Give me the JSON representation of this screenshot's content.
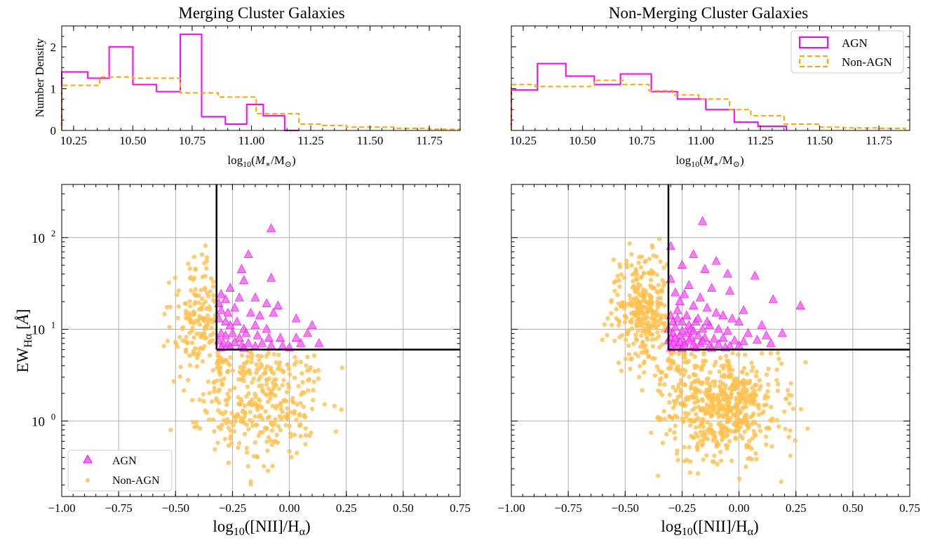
{
  "colors": {
    "agn": "#ff00ff",
    "agn_fill": "#ee55ee",
    "non_agn": "#ffa500",
    "non_agn_fill": "#ffc04d",
    "grid": "#b0b0b0",
    "axes": "#000000",
    "cut_line": "#000000"
  },
  "legend_labels": {
    "agn": "AGN",
    "non_agn": "Non-AGN"
  },
  "chart_data": [
    {
      "type": "bar",
      "subtype": "step-histogram",
      "panel": "top-left",
      "title": "Merging Cluster Galaxies",
      "xlabel": "log10(M*/M☉)",
      "ylabel": "Number Density",
      "xlim": [
        10.2,
        11.88
      ],
      "ylim": [
        0,
        2.5
      ],
      "xticks": [
        "10.25",
        "10.50",
        "10.75",
        "11.00",
        "11.25",
        "11.50",
        "11.75"
      ],
      "yticks": [
        "0",
        "1",
        "2"
      ],
      "grid": false,
      "series": [
        {
          "name": "AGN",
          "style": "solid",
          "edges": [
            10.2,
            10.31,
            10.4,
            10.5,
            10.6,
            10.7,
            10.79,
            10.89,
            10.98,
            11.05,
            11.14,
            11.2
          ],
          "values": [
            1.4,
            1.25,
            2.0,
            1.1,
            0.93,
            2.3,
            0.33,
            0.15,
            0.62,
            0.35,
            0.0
          ]
        },
        {
          "name": "Non-AGN",
          "style": "dashed",
          "edges": [
            10.2,
            10.36,
            10.5,
            10.57,
            10.7,
            10.78,
            10.86,
            11.02,
            11.2,
            11.3,
            11.4,
            11.6,
            11.75,
            11.88
          ],
          "values": [
            1.08,
            1.28,
            1.25,
            1.25,
            0.9,
            0.9,
            0.8,
            0.4,
            0.15,
            0.12,
            0.08,
            0.05,
            0.03
          ]
        }
      ]
    },
    {
      "type": "bar",
      "subtype": "step-histogram",
      "panel": "top-right",
      "title": "Non-Merging Cluster Galaxies",
      "xlabel": "log10(M*/M☉)",
      "xlim": [
        10.2,
        11.88
      ],
      "ylim": [
        0,
        2.5
      ],
      "xticks": [
        "10.25",
        "10.50",
        "10.75",
        "11.00",
        "11.25",
        "11.50",
        "11.75"
      ],
      "grid": false,
      "legend_position": "top-right",
      "series": [
        {
          "name": "AGN",
          "style": "solid",
          "edges": [
            10.2,
            10.31,
            10.43,
            10.55,
            10.66,
            10.79,
            10.9,
            11.02,
            11.14,
            11.24,
            11.36
          ],
          "values": [
            0.97,
            1.6,
            1.3,
            1.1,
            1.35,
            0.93,
            0.75,
            0.5,
            0.2,
            0.1
          ]
        },
        {
          "name": "Non-AGN",
          "style": "dashed",
          "edges": [
            10.2,
            10.3,
            10.42,
            10.55,
            10.67,
            10.78,
            10.88,
            10.99,
            11.12,
            11.21,
            11.35,
            11.5,
            11.6,
            11.75,
            11.86
          ],
          "values": [
            1.1,
            1.05,
            1.05,
            1.2,
            1.1,
            0.95,
            0.85,
            0.75,
            0.5,
            0.35,
            0.15,
            0.08,
            0.06,
            0.05
          ]
        }
      ]
    },
    {
      "type": "scatter",
      "panel": "bottom-left",
      "xlabel": "log10([NII]/Hα)",
      "ylabel": "EWHα [Å]",
      "xlim": [
        -1.0,
        0.75
      ],
      "ylim": [
        0.15,
        380
      ],
      "yscale": "log",
      "xticks": [
        "−1.00",
        "−0.75",
        "−0.50",
        "−0.25",
        "0.00",
        "0.25",
        "0.50",
        "0.75"
      ],
      "yticks": [
        "10^0",
        "10^1",
        "10^2"
      ],
      "grid": true,
      "legend_position": "lower-left",
      "cut_lines": {
        "x": -0.32,
        "y": 6
      },
      "series": [
        {
          "name": "AGN",
          "marker": "triangle",
          "points": [
            [
              -0.08,
              125
            ],
            [
              -0.08,
              36
            ],
            [
              -0.18,
              65
            ],
            [
              -0.21,
              45
            ],
            [
              -0.2,
              34
            ],
            [
              -0.26,
              28
            ],
            [
              -0.22,
              22
            ],
            [
              -0.15,
              22
            ],
            [
              -0.1,
              19
            ],
            [
              -0.05,
              18
            ],
            [
              -0.3,
              24
            ],
            [
              -0.28,
              21
            ],
            [
              -0.31,
              19
            ],
            [
              -0.3,
              16
            ],
            [
              -0.27,
              15
            ],
            [
              -0.24,
              17
            ],
            [
              -0.17,
              15
            ],
            [
              -0.13,
              14
            ],
            [
              -0.07,
              15
            ],
            [
              0.03,
              13
            ],
            [
              0.1,
              11
            ],
            [
              -0.31,
              13
            ],
            [
              -0.28,
              12
            ],
            [
              -0.26,
              11
            ],
            [
              -0.23,
              12
            ],
            [
              -0.2,
              10
            ],
            [
              -0.15,
              11
            ],
            [
              -0.1,
              10
            ],
            [
              -0.3,
              9
            ],
            [
              -0.28,
              8.5
            ],
            [
              -0.25,
              9
            ],
            [
              -0.22,
              8
            ],
            [
              -0.19,
              9
            ],
            [
              -0.14,
              8.5
            ],
            [
              -0.09,
              8
            ],
            [
              -0.04,
              8
            ],
            [
              0.08,
              9
            ],
            [
              -0.31,
              7.5
            ],
            [
              -0.29,
              7
            ],
            [
              -0.27,
              6.8
            ],
            [
              -0.24,
              7.2
            ],
            [
              -0.21,
              6.6
            ],
            [
              -0.18,
              7
            ],
            [
              -0.15,
              6.5
            ],
            [
              -0.12,
              7
            ],
            [
              -0.08,
              6.6
            ],
            [
              -0.03,
              6.5
            ],
            [
              0.05,
              7
            ],
            [
              0.13,
              7
            ],
            [
              -0.3,
              6.3
            ],
            [
              -0.26,
              6.4
            ],
            [
              -0.2,
              6.2
            ],
            [
              0.0,
              6.3
            ],
            [
              0.03,
              8
            ]
          ]
        },
        {
          "name": "Non-AGN",
          "marker": "circle",
          "generated": true,
          "count": 520,
          "seed": 11,
          "clusters": [
            {
              "cx": -0.4,
              "cy": 14,
              "sx": 0.06,
              "sy": 0.32,
              "n": 170
            },
            {
              "cx": -0.1,
              "cy": 1.6,
              "sx": 0.14,
              "sy": 0.34,
              "n": 350
            }
          ],
          "y_cap_right_of_cut": 6
        }
      ]
    },
    {
      "type": "scatter",
      "panel": "bottom-right",
      "xlabel": "log10([NII]/Hα)",
      "xlim": [
        -1.0,
        0.75
      ],
      "ylim": [
        0.15,
        380
      ],
      "yscale": "log",
      "xticks": [
        "−1.00",
        "−0.75",
        "−0.50",
        "−0.25",
        "0.00",
        "0.25",
        "0.50",
        "0.75"
      ],
      "grid": true,
      "cut_lines": {
        "x": -0.31,
        "y": 6
      },
      "series": [
        {
          "name": "AGN",
          "marker": "triangle",
          "points": [
            [
              -0.16,
              150
            ],
            [
              -0.3,
              80
            ],
            [
              -0.2,
              65
            ],
            [
              -0.1,
              55
            ],
            [
              -0.15,
              45
            ],
            [
              -0.25,
              50
            ],
            [
              -0.05,
              40
            ],
            [
              0.07,
              38
            ],
            [
              -0.22,
              30
            ],
            [
              -0.12,
              28
            ],
            [
              -0.04,
              26
            ],
            [
              0.15,
              21
            ],
            [
              0.27,
              18
            ],
            [
              0.02,
              16
            ],
            [
              -0.3,
              35
            ],
            [
              -0.28,
              25
            ],
            [
              -0.26,
              20
            ],
            [
              -0.24,
              24
            ],
            [
              -0.2,
              18
            ],
            [
              -0.17,
              22
            ],
            [
              -0.14,
              17
            ],
            [
              -0.1,
              15
            ],
            [
              -0.07,
              14
            ],
            [
              -0.03,
              13
            ],
            [
              0.0,
              12
            ],
            [
              0.1,
              11
            ],
            [
              0.19,
              9
            ],
            [
              -0.3,
              14
            ],
            [
              -0.27,
              13
            ],
            [
              -0.25,
              12
            ],
            [
              -0.22,
              11
            ],
            [
              -0.19,
              12
            ],
            [
              -0.16,
              10
            ],
            [
              -0.13,
              11
            ],
            [
              -0.09,
              10
            ],
            [
              -0.05,
              9.5
            ],
            [
              0.04,
              9
            ],
            [
              0.12,
              8.5
            ],
            [
              -0.31,
              10
            ],
            [
              -0.29,
              9
            ],
            [
              -0.26,
              8.5
            ],
            [
              -0.23,
              9
            ],
            [
              -0.21,
              8
            ],
            [
              -0.18,
              8.5
            ],
            [
              -0.15,
              8
            ],
            [
              -0.11,
              7.8
            ],
            [
              -0.07,
              8
            ],
            [
              -0.02,
              7.5
            ],
            [
              0.02,
              7.3
            ],
            [
              0.08,
              7.6
            ],
            [
              0.14,
              7
            ],
            [
              -0.31,
              7.5
            ],
            [
              -0.29,
              7
            ],
            [
              -0.27,
              6.8
            ],
            [
              -0.24,
              7.1
            ],
            [
              -0.2,
              6.7
            ],
            [
              -0.17,
              6.9
            ],
            [
              -0.13,
              6.6
            ],
            [
              -0.09,
              6.8
            ],
            [
              -0.04,
              6.5
            ],
            [
              0.0,
              6.6
            ],
            [
              -0.3,
              6.3
            ],
            [
              -0.25,
              6.2
            ],
            [
              -0.19,
              6.3
            ],
            [
              -0.12,
              6.2
            ],
            [
              -0.06,
              6.3
            ],
            [
              -0.29,
              12
            ],
            [
              -0.27,
              16
            ],
            [
              -0.23,
              14
            ],
            [
              -0.21,
              10
            ],
            [
              -0.18,
              13
            ],
            [
              -0.14,
              12
            ],
            [
              -0.28,
              10.5
            ],
            [
              -0.25,
              9.5
            ],
            [
              -0.22,
              7.5
            ],
            [
              -0.3,
              8
            ],
            [
              -0.28,
              8
            ],
            [
              -0.26,
              7.2
            ],
            [
              -0.24,
              6.6
            ],
            [
              -0.2,
              9.5
            ],
            [
              -0.16,
              7.4
            ]
          ]
        },
        {
          "name": "Non-AGN",
          "marker": "circle",
          "generated": true,
          "count": 930,
          "seed": 29,
          "clusters": [
            {
              "cx": -0.42,
              "cy": 14,
              "sx": 0.07,
              "sy": 0.32,
              "n": 330
            },
            {
              "cx": -0.07,
              "cy": 1.5,
              "sx": 0.13,
              "sy": 0.3,
              "n": 600
            }
          ],
          "y_cap_right_of_cut": 6
        }
      ]
    }
  ]
}
